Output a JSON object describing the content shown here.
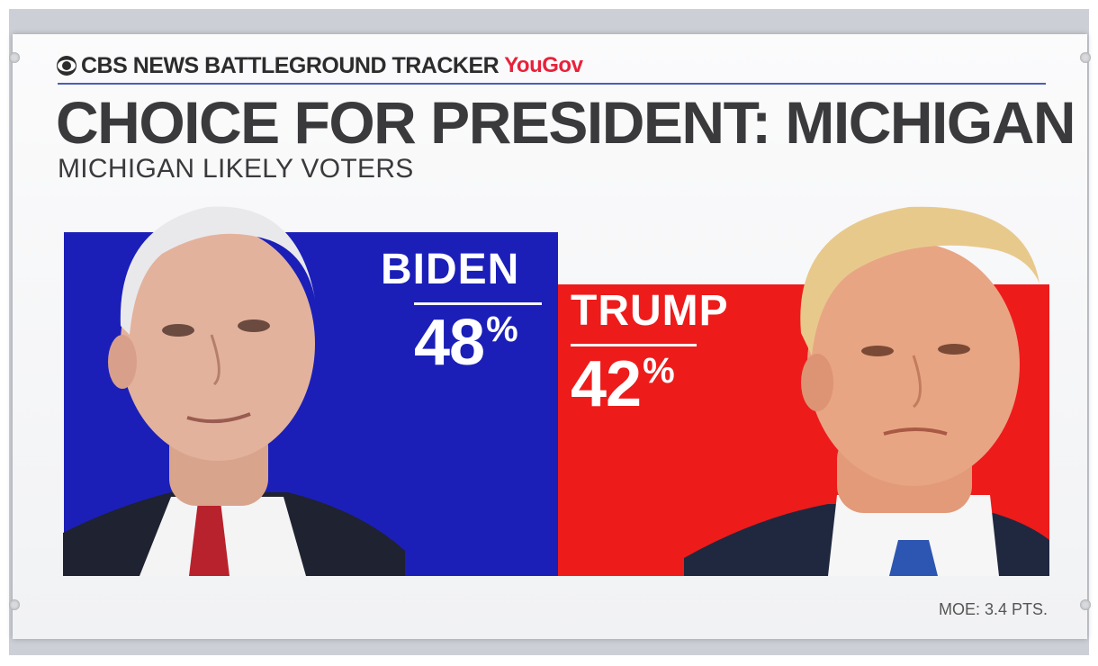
{
  "header": {
    "brand": "CBS NEWS BATTLEGROUND TRACKER",
    "partner": "YouGov",
    "title": "CHOICE FOR PRESIDENT:  MICHIGAN",
    "subtitle": "MICHIGAN LIKELY VOTERS"
  },
  "chart_data": {
    "type": "bar",
    "title": "CHOICE FOR PRESIDENT:  MICHIGAN",
    "subtitle": "MICHIGAN LIKELY VOTERS",
    "categories": [
      "BIDEN",
      "TRUMP"
    ],
    "values": [
      48,
      42
    ],
    "value_labels": [
      "48",
      "42"
    ],
    "unit": "%",
    "colors": [
      "#1b1fb8",
      "#ee1b1b"
    ],
    "xlabel": "",
    "ylabel": "",
    "grid": false
  },
  "footer": {
    "moe": "MOE: 3.4 PTS."
  },
  "icons": {
    "logo": "cbs-eye-icon",
    "portraits": [
      "biden-portrait",
      "trump-portrait"
    ]
  }
}
